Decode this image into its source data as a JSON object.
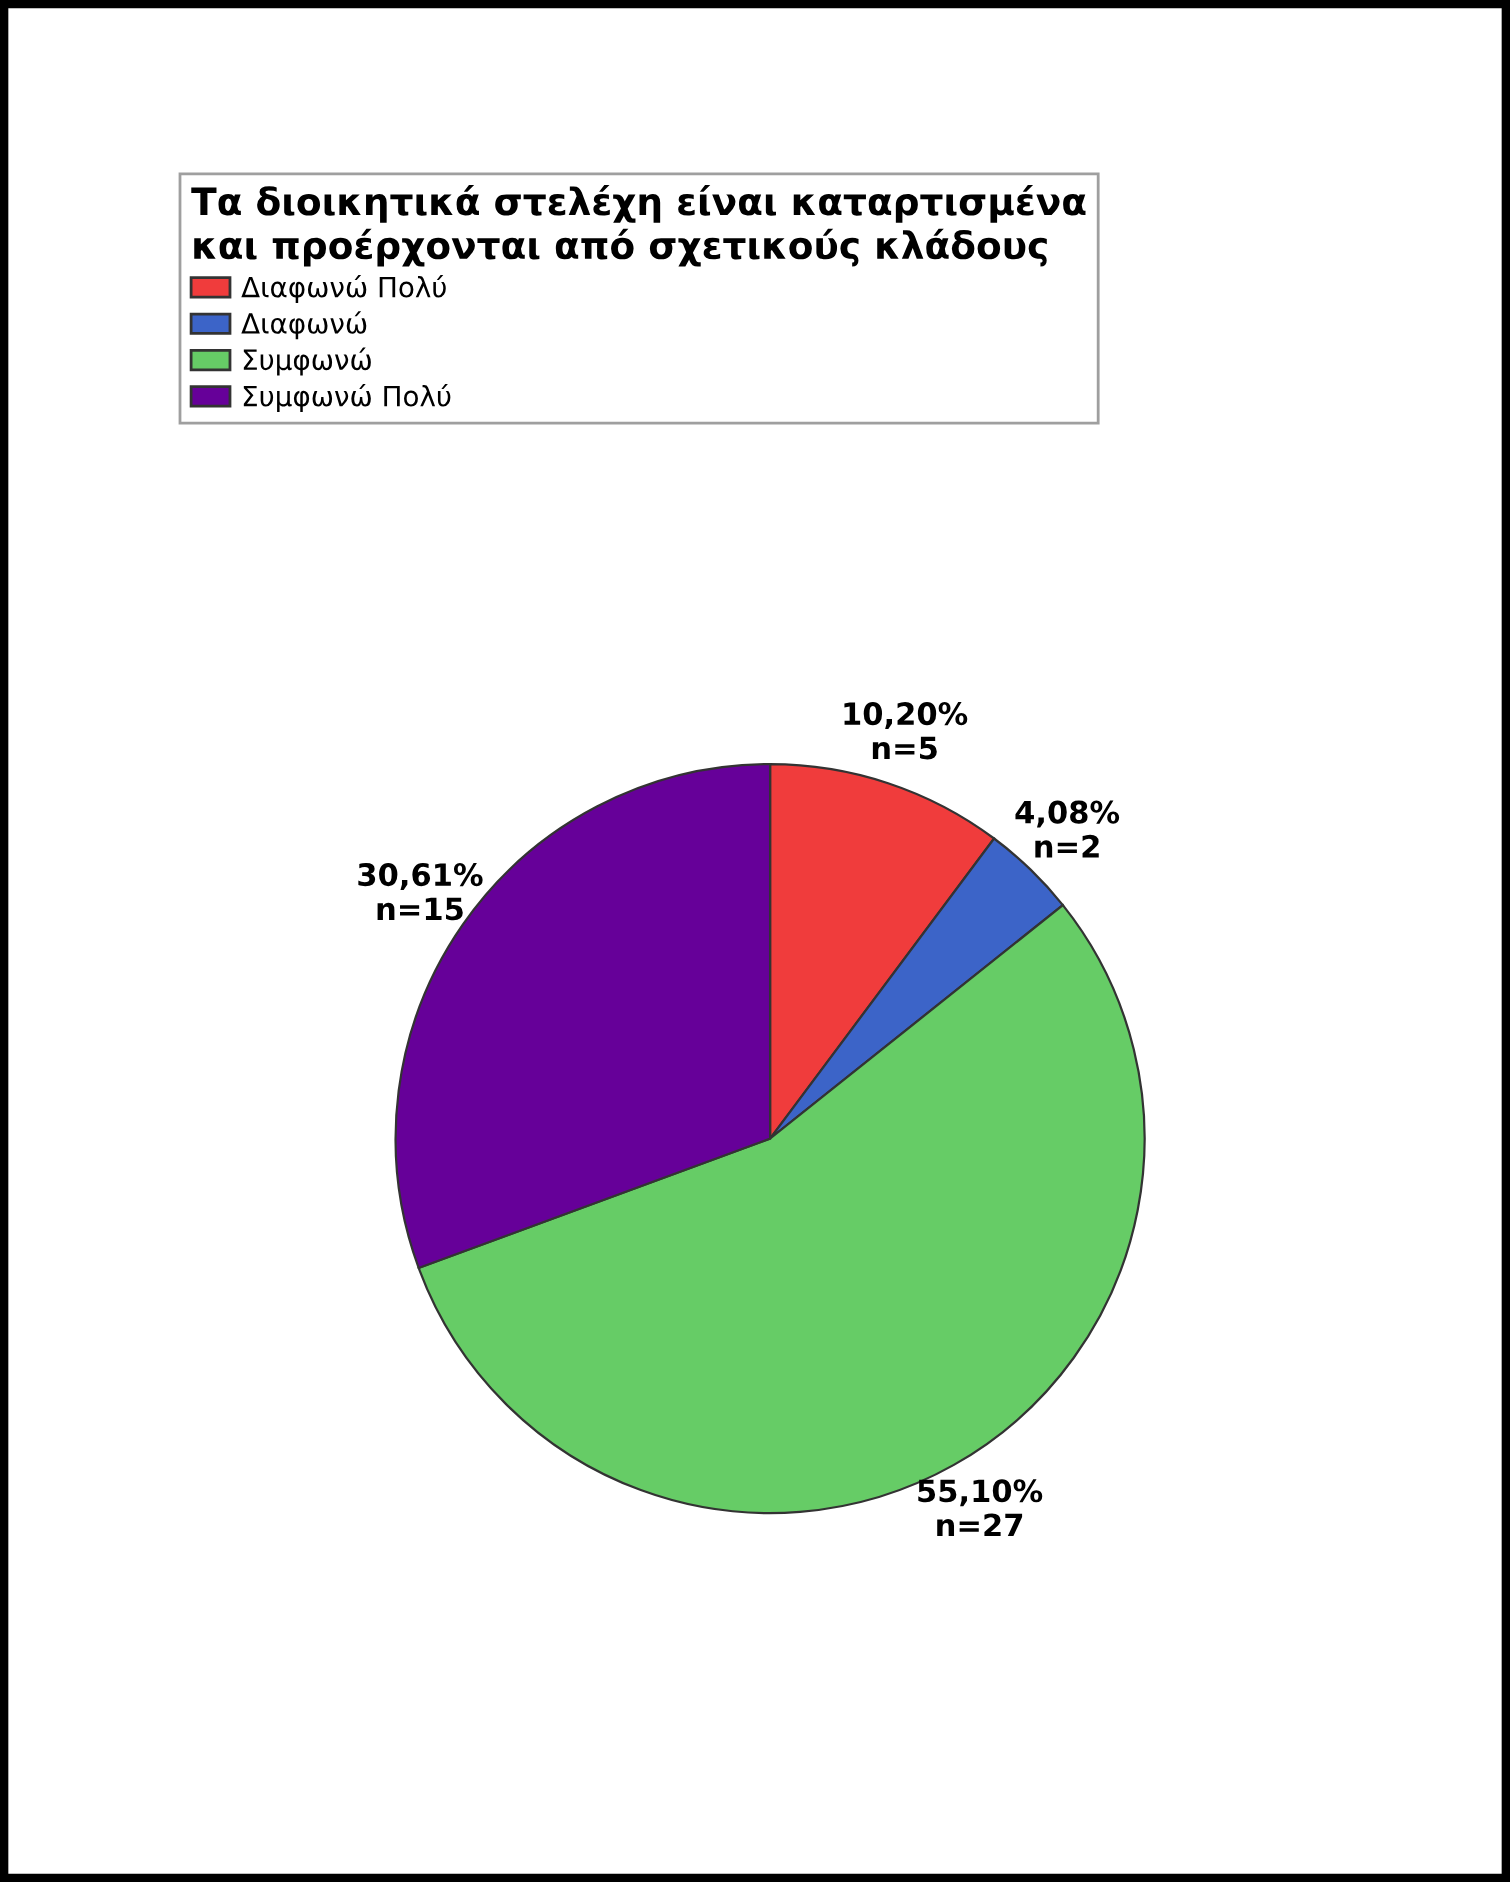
{
  "chart_data": {
    "type": "pie",
    "legend_title": "Τα διοικητικά στελέχη είναι καταρτισμένα\nκαι προέρχονται από σχετικούς κλάδους",
    "categories": [
      "Διαφωνώ Πολύ",
      "Διαφωνώ",
      "Συμφωνώ",
      "Συμφωνώ Πολύ"
    ],
    "values": [
      5,
      2,
      27,
      15
    ],
    "value_labels": [
      "10,20%\nn=5",
      "4,08%\nn=2",
      "55,10%\nn=27",
      "30,61%\nn=15"
    ],
    "colors": [
      "#f03c3c",
      "#3c64c8",
      "#66cc66",
      "#660099"
    ],
    "legend": "top left"
  }
}
